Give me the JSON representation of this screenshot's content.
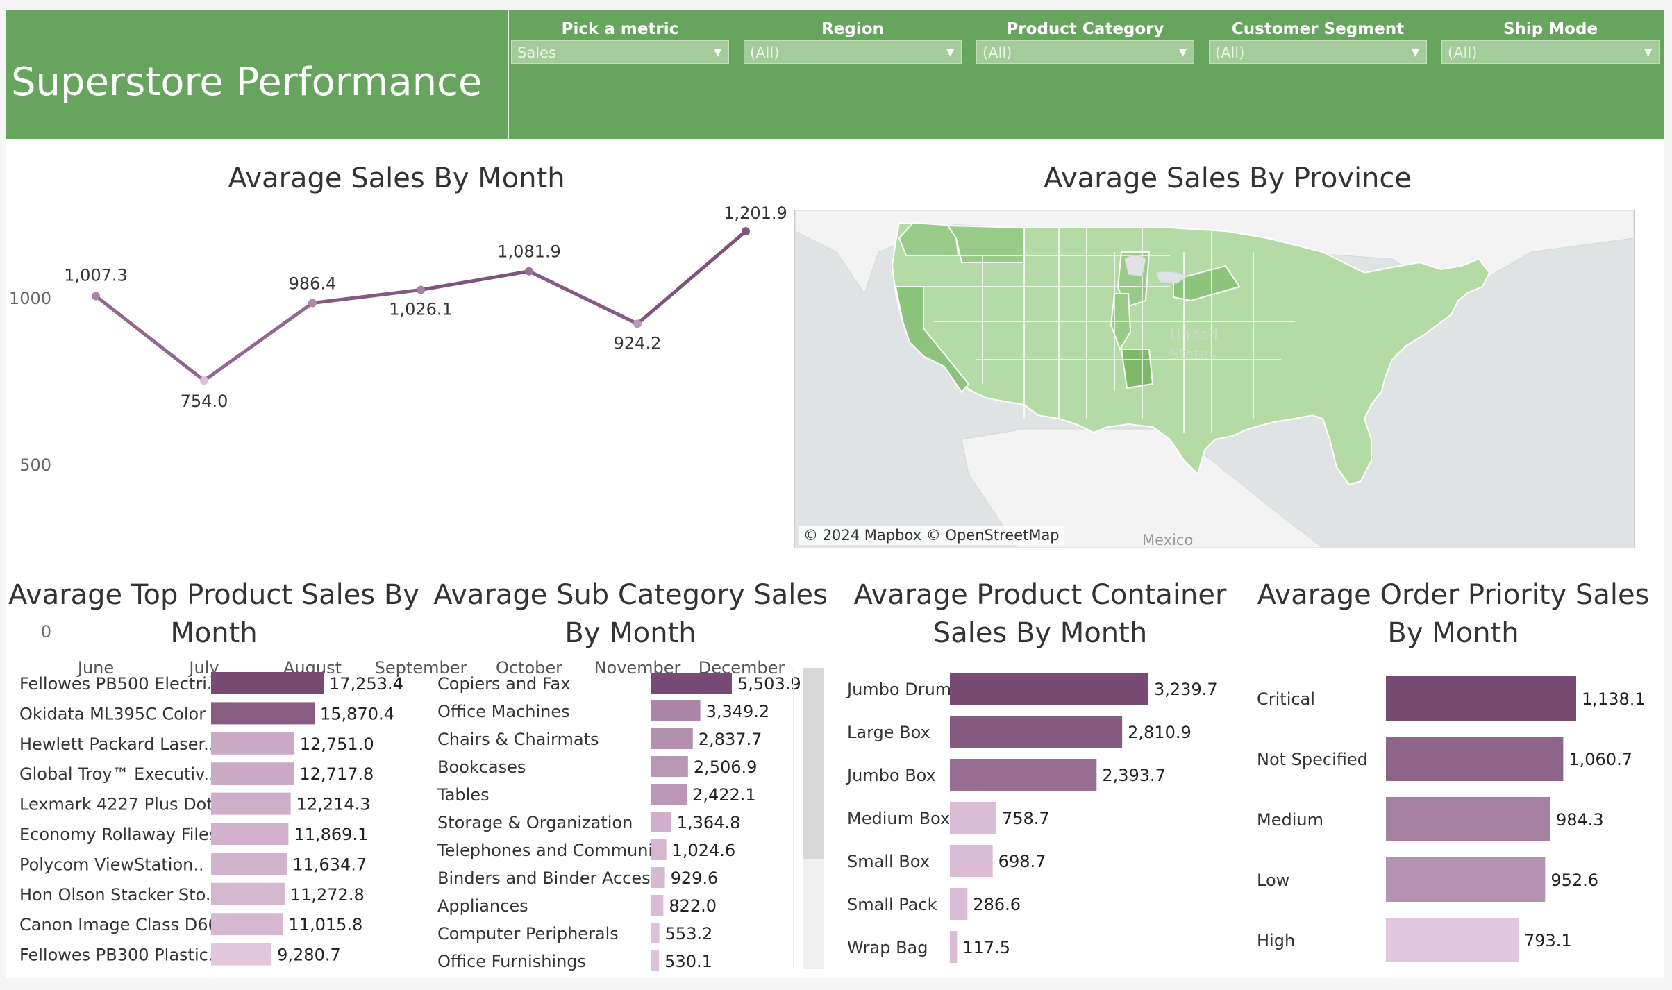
{
  "header": {
    "title": "Superstore Performance",
    "filters": [
      {
        "label": "Pick a metric",
        "value": "Sales"
      },
      {
        "label": "Region",
        "value": "(All)"
      },
      {
        "label": "Product Category",
        "value": "(All)"
      },
      {
        "label": "Customer Segment",
        "value": "(All)"
      },
      {
        "label": "Ship Mode",
        "value": "(All)"
      }
    ]
  },
  "colors": {
    "header_bg": "#67a55e",
    "bar_dark": "#774b74",
    "bar_light": "#e8cce2",
    "map_fill": "#a9d59b"
  },
  "map": {
    "title": "Avarage Sales By Province",
    "attribution": "© 2024 Mapbox  © OpenStreetMap",
    "labels": {
      "us": "United",
      "us2": "States",
      "mexico": "Mexico"
    }
  },
  "chart_data": [
    {
      "type": "line",
      "title": "Avarage Sales By Month",
      "categories": [
        "June",
        "July",
        "August",
        "September",
        "October",
        "November",
        "December"
      ],
      "values": [
        1007.3,
        754.0,
        986.4,
        1026.1,
        1081.9,
        924.2,
        1201.9
      ],
      "value_labels": [
        "1,007.3",
        "754.0",
        "986.4",
        "1,026.1",
        "1,081.9",
        "924.2",
        "1,201.9"
      ],
      "yticks": [
        "0",
        "500",
        "1000"
      ],
      "ylim": [
        0,
        1250
      ]
    },
    {
      "type": "bar",
      "title": "Avarage Top Product Sales By Month",
      "title_lines": [
        "Avarage Top Product Sales By",
        "Month"
      ],
      "categories": [
        "Fellowes PB500 Electri..",
        "Okidata ML395C Color ..",
        "Hewlett Packard Laser..",
        "Global Troy™ Executiv..",
        "Lexmark 4227 Plus Dot ..",
        "Economy Rollaway Files",
        "Polycom ViewStation..",
        "Hon Olson Stacker Sto..",
        "Canon Image Class D66..",
        "Fellowes PB300 Plastic.."
      ],
      "values": [
        17253.4,
        15870.4,
        12751.0,
        12717.8,
        12214.3,
        11869.1,
        11634.7,
        11272.8,
        11015.8,
        9280.7
      ],
      "value_labels": [
        "17,253.4",
        "15,870.4",
        "12,751.0",
        "12,717.8",
        "12,214.3",
        "11,869.1",
        "11,634.7",
        "11,272.8",
        "11,015.8",
        "9,280.7"
      ]
    },
    {
      "type": "bar",
      "title": "Avarage Sub Category Sales By Month",
      "title_lines": [
        "Avarage Sub Category Sales",
        "By Month"
      ],
      "categories": [
        "Copiers and Fax",
        "Office Machines",
        "Chairs & Chairmats",
        "Bookcases",
        "Tables",
        "Storage & Organization",
        "Telephones and Communi..",
        "Binders and Binder Acces..",
        "Appliances",
        "Computer Peripherals",
        "Office Furnishings"
      ],
      "values": [
        5503.9,
        3349.2,
        2837.7,
        2506.9,
        2422.1,
        1364.8,
        1024.6,
        929.6,
        822.0,
        553.2,
        530.1
      ],
      "value_labels": [
        "5,503.9",
        "3,349.2",
        "2,837.7",
        "2,506.9",
        "2,422.1",
        "1,364.8",
        "1,024.6",
        "929.6",
        "822.0",
        "553.2",
        "530.1"
      ]
    },
    {
      "type": "bar",
      "title": "Avarage Product Container Sales By Month",
      "title_lines": [
        "Avarage Product Container",
        "Sales By Month"
      ],
      "categories": [
        "Jumbo Drum",
        "Large Box",
        "Jumbo Box",
        "Medium Box",
        "Small Box",
        "Small Pack",
        "Wrap Bag"
      ],
      "values": [
        3239.7,
        2810.9,
        2393.7,
        758.7,
        698.7,
        286.6,
        117.5
      ],
      "value_labels": [
        "3,239.7",
        "2,810.9",
        "2,393.7",
        "758.7",
        "698.7",
        "286.6",
        "117.5"
      ]
    },
    {
      "type": "bar",
      "title": "Avarage Order Priority Sales By Month",
      "title_lines": [
        "Avarage Order Priority Sales",
        "By Month"
      ],
      "categories": [
        "Critical",
        "Not Specified",
        "Medium",
        "Low",
        "High"
      ],
      "values": [
        1138.1,
        1060.7,
        984.3,
        952.6,
        793.1
      ],
      "value_labels": [
        "1,138.1",
        "1,060.7",
        "984.3",
        "952.6",
        "793.1"
      ]
    }
  ]
}
